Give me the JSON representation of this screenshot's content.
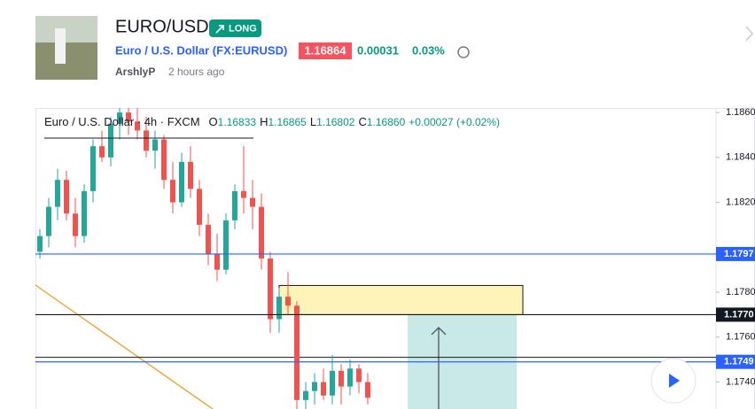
{
  "header": {
    "title": "EURO/USD",
    "badge": "LONG",
    "symbol": "Euro / U.S. Dollar (FX:EURUSD)",
    "price": "1.16864",
    "change": "0.00031",
    "change_pct": "0.03%",
    "author": "ArshlyP",
    "time": "2 hours ago"
  },
  "chart_data": {
    "type": "candlestick",
    "title": "Euro / U.S. Dollar · 4h · FXCM",
    "legend": [
      {
        "label": "O",
        "value": "1.16833"
      },
      {
        "label": "H",
        "value": "1.16865"
      },
      {
        "label": "L",
        "value": "1.16802"
      },
      {
        "label": "C",
        "value": "1.16860"
      }
    ],
    "legend_change": "+0.00027 (+0.02%)",
    "open": [
      1.1798,
      1.1805,
      1.1818,
      1.183,
      1.1815,
      1.1805,
      1.1825,
      1.1845,
      1.184,
      1.1855,
      1.186,
      1.1856,
      1.1852,
      1.1843,
      1.1848,
      1.183,
      1.182,
      1.1838,
      1.1826,
      1.181,
      1.1797,
      1.179,
      1.1812,
      1.1825,
      1.1822,
      1.1818,
      1.1795,
      1.1768,
      1.1778,
      1.1774,
      1.1732,
      1.1736,
      1.174,
      1.1734,
      1.1745,
      1.1738,
      1.1746,
      1.174
    ],
    "high": [
      1.1808,
      1.1822,
      1.1835,
      1.1834,
      1.1822,
      1.1828,
      1.1848,
      1.1852,
      1.1858,
      1.1866,
      1.1866,
      1.1866,
      1.1858,
      1.1852,
      1.185,
      1.1838,
      1.1842,
      1.1845,
      1.183,
      1.1815,
      1.1806,
      1.1815,
      1.1828,
      1.1845,
      1.183,
      1.1824,
      1.1798,
      1.1782,
      1.1789,
      1.1776,
      1.174,
      1.1744,
      1.1746,
      1.1752,
      1.1748,
      1.175,
      1.1748,
      1.1744
    ],
    "low": [
      1.1795,
      1.18,
      1.1812,
      1.1812,
      1.18,
      1.1802,
      1.182,
      1.1838,
      1.1836,
      1.1848,
      1.185,
      1.1848,
      1.184,
      1.1835,
      1.1826,
      1.1815,
      1.1818,
      1.1822,
      1.1805,
      1.1792,
      1.1785,
      1.1788,
      1.1808,
      1.1815,
      1.1808,
      1.179,
      1.1762,
      1.1762,
      1.177,
      1.1728,
      1.1728,
      1.173,
      1.1732,
      1.173,
      1.173,
      1.1734,
      1.1735,
      1.173
    ],
    "close": [
      1.1805,
      1.1818,
      1.183,
      1.1815,
      1.1805,
      1.1825,
      1.1845,
      1.184,
      1.1855,
      1.186,
      1.1856,
      1.1852,
      1.1843,
      1.1848,
      1.183,
      1.182,
      1.1838,
      1.1826,
      1.181,
      1.1797,
      1.179,
      1.1812,
      1.1825,
      1.1822,
      1.1818,
      1.1795,
      1.1768,
      1.1778,
      1.1774,
      1.1732,
      1.1736,
      1.174,
      1.1734,
      1.1745,
      1.1738,
      1.1746,
      1.174,
      1.1733
    ],
    "up_color": "#26a69a",
    "down_color": "#ef5350",
    "ylim": [
      1.1728,
      1.1862
    ],
    "yticks": [
      {
        "value": 1.186,
        "label": "1.1860"
      },
      {
        "value": 1.184,
        "label": "1.1840"
      },
      {
        "value": 1.182,
        "label": "1.1820"
      },
      {
        "value": 1.178,
        "label": "1.1780"
      },
      {
        "value": 1.176,
        "label": "1.1760"
      },
      {
        "value": 1.174,
        "label": "1.1740"
      }
    ],
    "levels": [
      1.1797,
      {
        "value": 1.177,
        "label": "1.1770"
      },
      1.1749
    ],
    "level_colors": [
      "#2962ff",
      "#131722",
      "#2962ff"
    ],
    "zone": [
      1.1783,
      1.177
    ],
    "support_line": 1.1751
  }
}
